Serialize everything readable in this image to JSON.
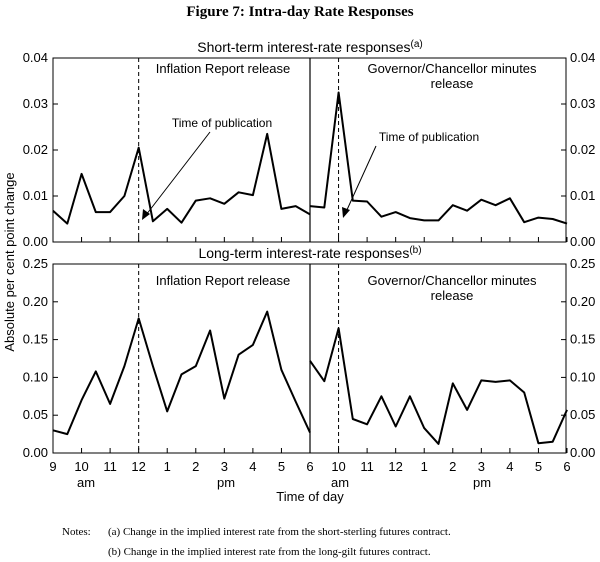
{
  "figure_title": "Figure 7: Intra-day Rate Responses",
  "shared_ylabel": "Absolute per cent point change",
  "shared_xlabel": "Time of day",
  "notes": {
    "label": "Notes:",
    "a": "(a) Change in the implied interest rate from the short-sterling futures contract.",
    "b": "(b) Change in the implied interest rate from the long-gilt futures contract."
  },
  "colors": {
    "line": "#000000",
    "background": "#ffffff"
  },
  "chart_data": [
    {
      "type": "line",
      "title": "Short-term interest-rate responses",
      "title_note": "(a)",
      "ylim": [
        0,
        0.04
      ],
      "yticks": [
        "0.00",
        "0.01",
        "0.02",
        "0.03",
        "0.04"
      ],
      "right_axis": true,
      "grid": false,
      "x_ticks": [
        "9",
        "10",
        "11",
        "12",
        "1",
        "2",
        "3",
        "4",
        "5",
        "6"
      ],
      "panel_labels": [
        "Inflation Report release",
        "Governor/Chancellor minutes release"
      ],
      "annotation": "Time of publication",
      "publication_times": [
        "12",
        "10"
      ],
      "series": [
        {
          "segment": "Inflation Report release",
          "x_start": "9",
          "x_step_hours": 0.5,
          "values": [
            0.0068,
            0.004,
            0.0148,
            0.0065,
            0.0065,
            0.01,
            0.0205,
            0.0045,
            0.0072,
            0.0042,
            0.009,
            0.0095,
            0.0083,
            0.0108,
            0.0102,
            0.0235,
            0.0072,
            0.0078,
            0.006
          ]
        },
        {
          "segment": "Governor/Chancellor minutes release",
          "x_start": "6",
          "x_step_hours": 0.5,
          "values": [
            0.0078,
            0.0075,
            0.0325,
            0.009,
            0.0088,
            0.0055,
            0.0065,
            0.0052,
            0.0047,
            0.0047,
            0.008,
            0.0068,
            0.0092,
            0.008,
            0.0095,
            0.0043,
            0.0053,
            0.005,
            0.004
          ]
        }
      ]
    },
    {
      "type": "line",
      "title": "Long-term interest-rate responses",
      "title_note": "(b)",
      "ylim": [
        0,
        0.25
      ],
      "yticks": [
        "0.00",
        "0.05",
        "0.10",
        "0.15",
        "0.20",
        "0.25"
      ],
      "right_axis": true,
      "grid": false,
      "x_ticks": [
        "9",
        "10",
        "11",
        "12",
        "1",
        "2",
        "3",
        "4",
        "5",
        "6",
        "10",
        "11",
        "12",
        "1",
        "2",
        "3",
        "4",
        "5",
        "6"
      ],
      "x_sublabels": [
        "am",
        "pm",
        "am",
        "pm"
      ],
      "panel_labels": [
        "Inflation Report release",
        "Governor/Chancellor minutes release"
      ],
      "publication_times": [
        "12",
        "10"
      ],
      "series": [
        {
          "segment": "Inflation Report release",
          "x_start": "9",
          "x_step_hours": 0.5,
          "values": [
            0.03,
            0.025,
            0.07,
            0.108,
            0.065,
            0.115,
            0.178,
            0.115,
            0.055,
            0.104,
            0.115,
            0.162,
            0.072,
            0.13,
            0.143,
            0.187,
            0.11,
            0.068,
            0.027
          ]
        },
        {
          "segment": "Governor/Chancellor minutes release",
          "x_start": "6",
          "x_step_hours": 0.5,
          "values": [
            0.122,
            0.095,
            0.165,
            0.045,
            0.038,
            0.075,
            0.035,
            0.075,
            0.033,
            0.012,
            0.092,
            0.057,
            0.096,
            0.094,
            0.096,
            0.08,
            0.013,
            0.015,
            0.057
          ]
        }
      ]
    }
  ]
}
